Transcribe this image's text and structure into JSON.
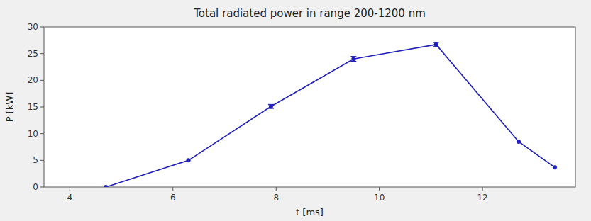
{
  "chart_data": {
    "type": "line",
    "title": "Total radiated power in range 200-1200 nm",
    "xlabel": "t [ms]",
    "ylabel": "P [kW]",
    "x": [
      4.7,
      6.3,
      7.9,
      9.5,
      11.1,
      12.7,
      13.4
    ],
    "series": [
      {
        "color": "#2222bb",
        "marker": "circle",
        "values": [
          0.0,
          5.0,
          15.1,
          24.0,
          26.7,
          8.5,
          3.7
        ],
        "errors": [
          null,
          null,
          0.35,
          0.45,
          0.4,
          null,
          null
        ]
      }
    ],
    "xlim": [
      3.5,
      13.8
    ],
    "ylim": [
      0,
      30
    ],
    "xticks": [
      4,
      6,
      8,
      10,
      12
    ],
    "yticks": [
      0,
      5,
      10,
      15,
      20,
      25,
      30
    ],
    "grid": false
  }
}
